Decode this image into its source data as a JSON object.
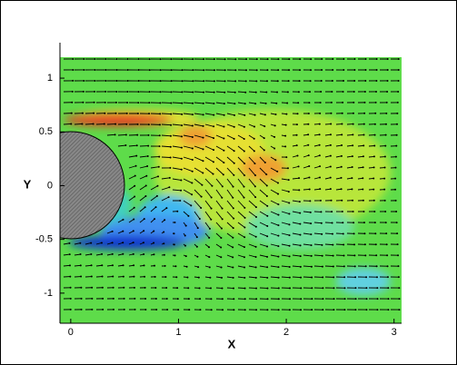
{
  "chart_data": {
    "type": "contour",
    "x_label": "X",
    "y_label": "Y",
    "xlim": [
      -0.1,
      3.07
    ],
    "ylim": [
      -1.28,
      1.33
    ],
    "xticks": [
      0,
      1,
      2,
      3
    ],
    "yticks": [
      -1,
      -0.5,
      0,
      0.5,
      1
    ]
  }
}
